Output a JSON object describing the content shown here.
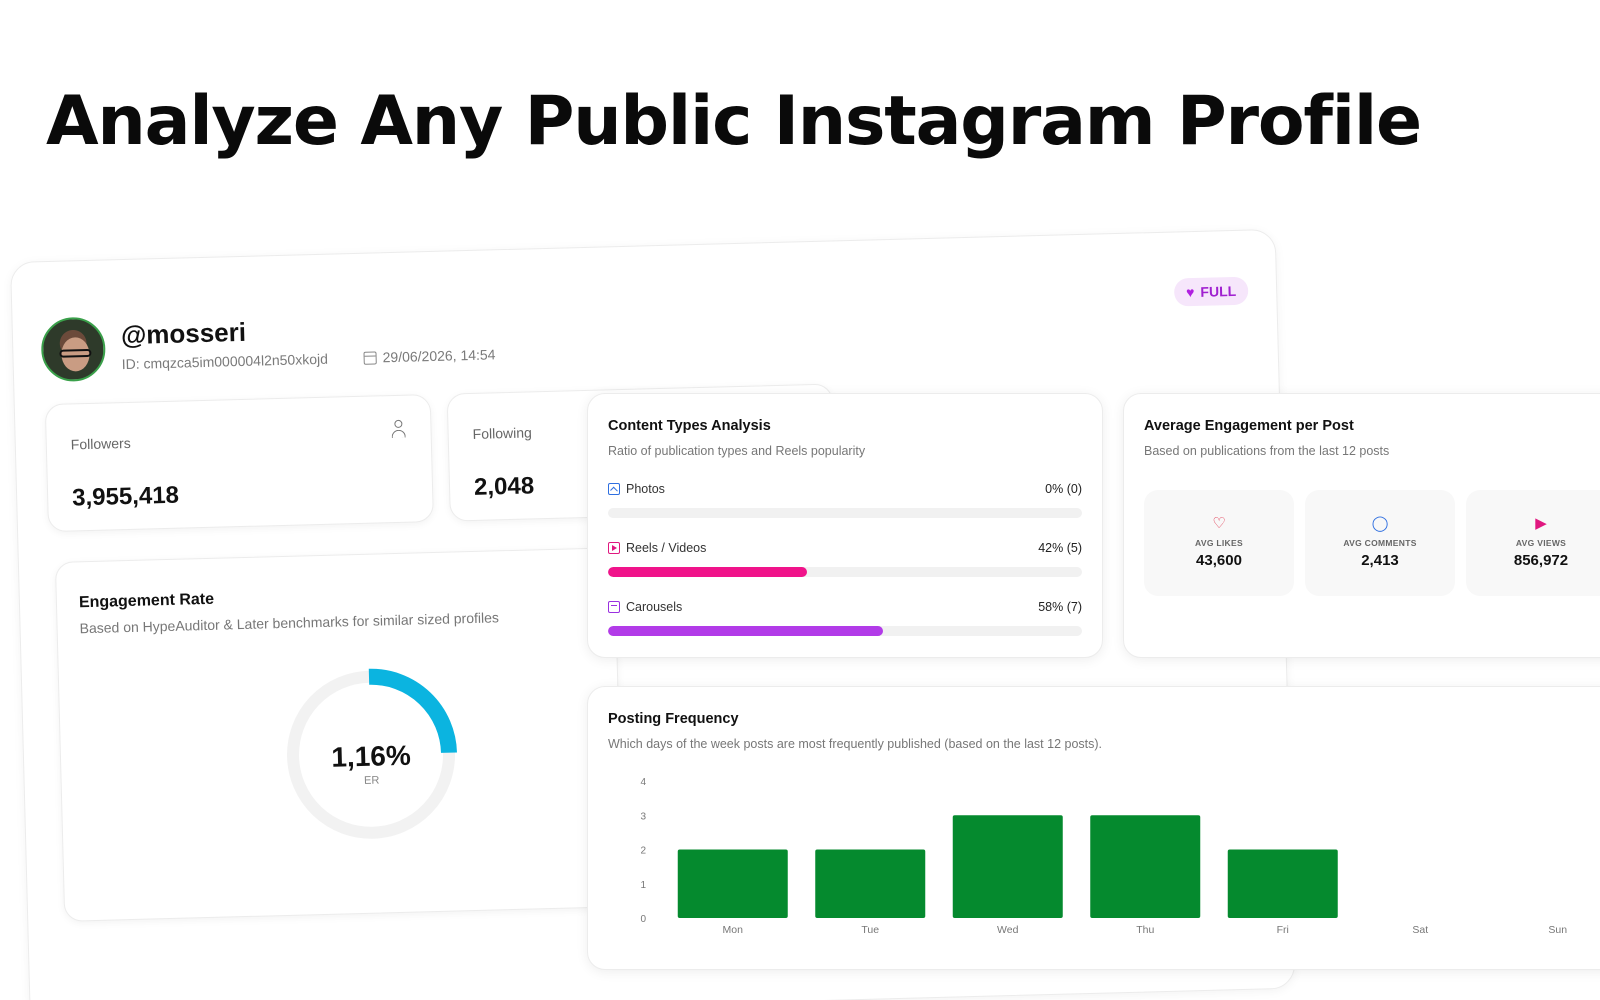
{
  "headline": "Analyze Any Public Instagram Profile",
  "profile": {
    "username": "@mosseri",
    "id_text": "ID: cmqzca5im000004l2n50xkojd",
    "date_text": "29/06/2026, 14:54",
    "badge": "FULL"
  },
  "stats": {
    "followers_label": "Followers",
    "followers_value": "3,955,418",
    "following_label": "Following",
    "following_value": "2,048"
  },
  "engagement_rate": {
    "title": "Engagement Rate",
    "subtitle": "Based on HypeAuditor & Later benchmarks for similar sized profiles",
    "value": "1,16%",
    "unit": "ER",
    "gauge_fraction": 0.25,
    "gauge_color": "#0bb4e0"
  },
  "content_types": {
    "title": "Content Types Analysis",
    "subtitle": "Ratio of publication types and Reels popularity",
    "rows": [
      {
        "label": "Photos",
        "value": "0% (0)",
        "percent": 0,
        "color": "#2f6fe0",
        "icon": "photo-icon"
      },
      {
        "label": "Reels / Videos",
        "value": "42% (5)",
        "percent": 42,
        "color": "#f0138a",
        "icon": "reel-icon"
      },
      {
        "label": "Carousels",
        "value": "58% (7)",
        "percent": 58,
        "color": "#b23be8",
        "icon": "carousel-icon"
      }
    ]
  },
  "avg_engagement": {
    "title": "Average Engagement per Post",
    "subtitle": "Based on publications from the last 12 posts",
    "tiles": [
      {
        "label": "AVG LIKES",
        "value": "43,600",
        "icon": "heart-icon",
        "color": "#e0304a"
      },
      {
        "label": "AVG COMMENTS",
        "value": "2,413",
        "icon": "comment-icon",
        "color": "#2f6fe0"
      },
      {
        "label": "AVG VIEWS",
        "value": "856,972",
        "icon": "play-icon",
        "color": "#e01880"
      }
    ]
  },
  "posting_frequency": {
    "title": "Posting Frequency",
    "subtitle": "Which days of the week posts are most frequently published (based on the last 12 posts)."
  },
  "chart_data": {
    "type": "bar",
    "categories": [
      "Mon",
      "Tue",
      "Wed",
      "Thu",
      "Fri",
      "Sat",
      "Sun"
    ],
    "values": [
      2,
      2,
      3,
      3,
      2,
      0,
      0
    ],
    "title": "Posting Frequency",
    "xlabel": "",
    "ylabel": "",
    "ylim": [
      0,
      4
    ],
    "yticks": [
      "0",
      "1",
      "2",
      "3",
      "4"
    ],
    "bar_color": "#058a2e",
    "grid": false
  }
}
